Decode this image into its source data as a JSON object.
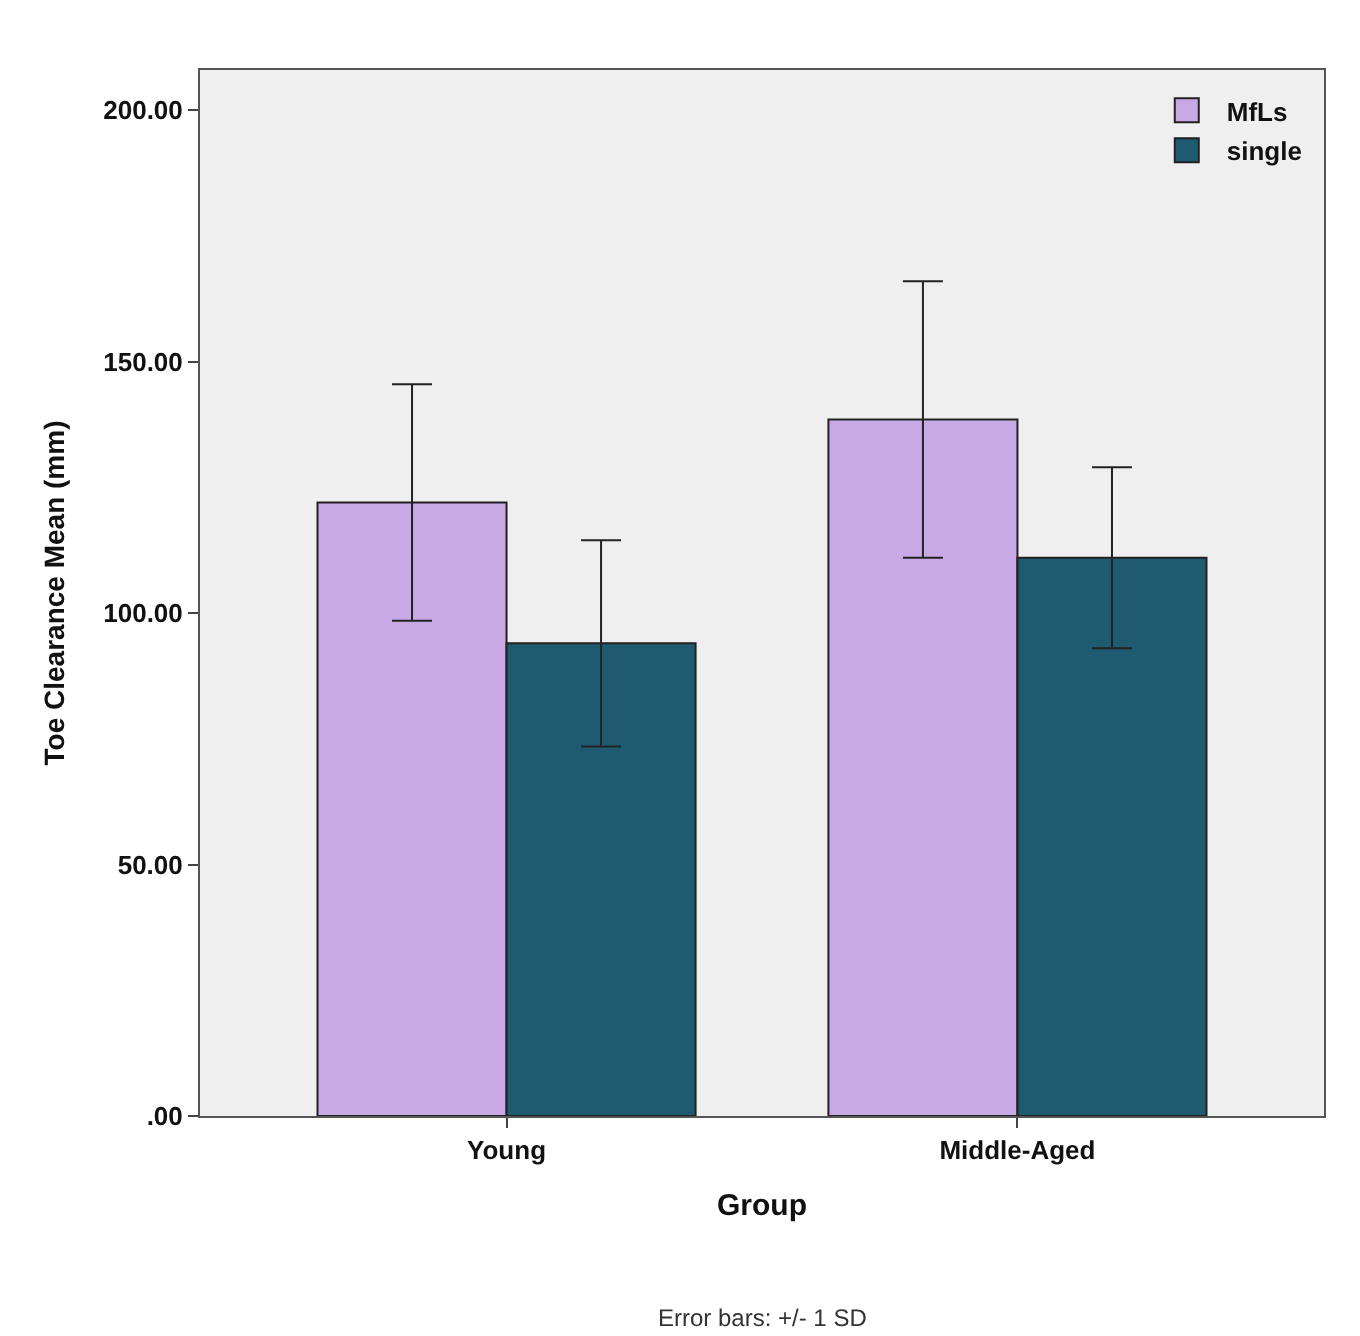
{
  "chart_data": {
    "type": "bar",
    "xlabel": "Group",
    "ylabel": "Toe Clearance Mean (mm)",
    "categories": [
      "Young",
      "Middle-Aged"
    ],
    "series": [
      {
        "name": "MfLs",
        "color": "#c9a8e6",
        "values": [
          122,
          138.5
        ],
        "errors": [
          23.5,
          27.5
        ]
      },
      {
        "name": "single",
        "color": "#1e5b70",
        "values": [
          94,
          111
        ],
        "errors": [
          20.5,
          18
        ]
      }
    ],
    "ylim": [
      0,
      208
    ],
    "yticks": [
      {
        "value": 0,
        "label": ".00"
      },
      {
        "value": 50,
        "label": "50.00"
      },
      {
        "value": 100,
        "label": "100.00"
      },
      {
        "value": 150,
        "label": "150.00"
      },
      {
        "value": 200,
        "label": "200.00"
      }
    ],
    "grid": false,
    "legend": "top right",
    "annotations": [
      "Error bars: +/- 1 SD"
    ]
  }
}
